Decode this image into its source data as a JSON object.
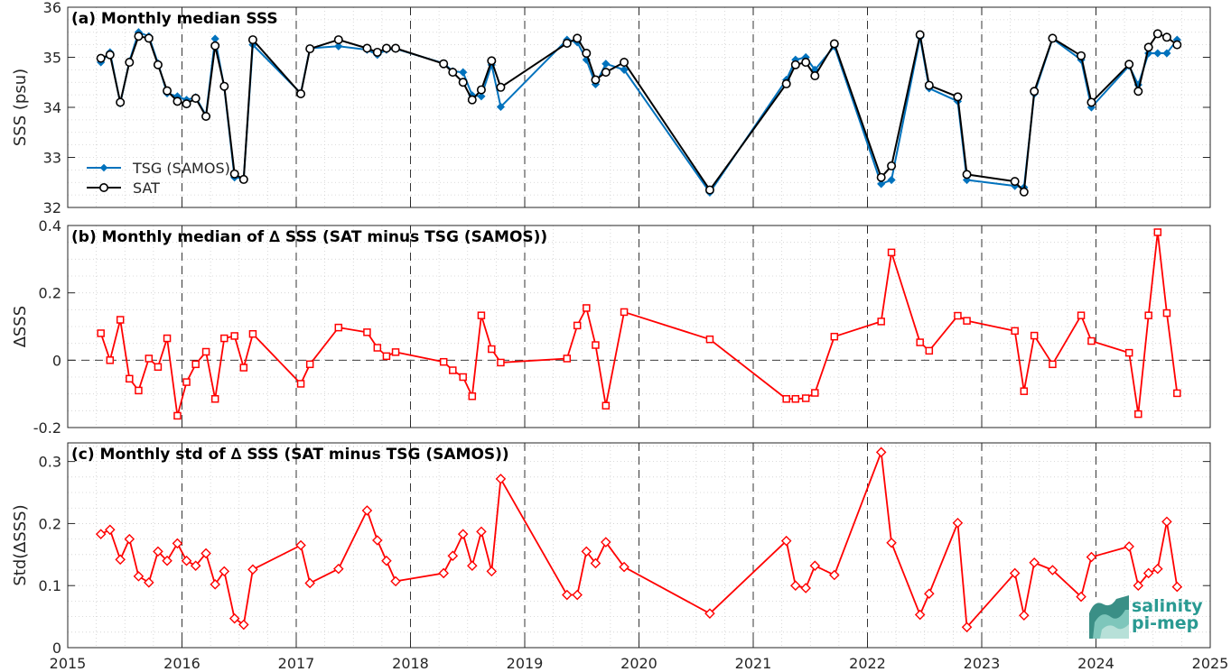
{
  "colors": {
    "tsg": "#0072bd",
    "sat": "#000000",
    "delta": "#ff0000",
    "grid": "#cfcfcf",
    "logo": "#2a9a92"
  },
  "logo": {
    "line1": "salinity",
    "line2": "pi-mep"
  },
  "chart_data": [
    {
      "type": "line",
      "title": "(a) Monthly median SSS",
      "ylabel": "SSS (psu)",
      "xlim": [
        2015,
        2025
      ],
      "ylim": [
        32,
        36
      ],
      "yticks": [
        "32",
        "33",
        "34",
        "35",
        "36"
      ],
      "legend": "left",
      "grid": true,
      "series": [
        {
          "name": "TSG (SAMOS)",
          "marker": "diamond",
          "x": [
            2015.29,
            2015.37,
            2015.46,
            2015.54,
            2015.62,
            2015.71,
            2015.79,
            2015.87,
            2015.96,
            2016.04,
            2016.12,
            2016.21,
            2016.29,
            2016.37,
            2016.46,
            2016.54,
            2016.62,
            2017.04,
            2017.12,
            2017.37,
            2017.62,
            2017.71,
            2017.79,
            2017.87,
            2018.29,
            2018.37,
            2018.46,
            2018.54,
            2018.62,
            2018.71,
            2018.79,
            2019.37,
            2019.46,
            2019.54,
            2019.62,
            2019.71,
            2019.87,
            2020.62,
            2021.29,
            2021.37,
            2021.46,
            2021.54,
            2021.71,
            2022.12,
            2022.21,
            2022.46,
            2022.54,
            2022.79,
            2022.87,
            2023.29,
            2023.37,
            2023.46,
            2023.62,
            2023.87,
            2023.96,
            2024.29,
            2024.37,
            2024.46,
            2024.54,
            2024.62,
            2024.71
          ],
          "y": [
            34.9,
            35.1,
            34.08,
            34.92,
            35.5,
            35.42,
            34.88,
            34.28,
            34.22,
            34.15,
            34.2,
            33.84,
            35.37,
            34.4,
            32.6,
            32.58,
            35.25,
            34.28,
            35.18,
            35.22,
            35.15,
            35.05,
            35.15,
            35.17,
            34.88,
            34.72,
            34.7,
            34.24,
            34.22,
            34.85,
            34.01,
            35.35,
            35.3,
            34.95,
            34.46,
            34.87,
            34.75,
            32.3,
            34.55,
            34.95,
            35.0,
            34.75,
            35.22,
            32.47,
            32.55,
            35.4,
            34.38,
            34.12,
            32.55,
            32.43,
            32.4,
            34.27,
            35.37,
            34.95,
            34.0,
            34.83,
            34.45,
            35.08,
            35.08,
            35.08,
            35.35
          ]
        },
        {
          "name": "SAT",
          "marker": "circle",
          "x": [
            2015.29,
            2015.37,
            2015.46,
            2015.54,
            2015.62,
            2015.71,
            2015.79,
            2015.87,
            2015.96,
            2016.04,
            2016.12,
            2016.21,
            2016.29,
            2016.37,
            2016.46,
            2016.54,
            2016.62,
            2017.04,
            2017.12,
            2017.37,
            2017.62,
            2017.71,
            2017.79,
            2017.87,
            2018.29,
            2018.37,
            2018.46,
            2018.54,
            2018.62,
            2018.71,
            2018.79,
            2019.37,
            2019.46,
            2019.54,
            2019.62,
            2019.71,
            2019.87,
            2020.62,
            2021.29,
            2021.37,
            2021.46,
            2021.54,
            2021.71,
            2022.12,
            2022.21,
            2022.46,
            2022.54,
            2022.79,
            2022.87,
            2023.29,
            2023.37,
            2023.46,
            2023.62,
            2023.87,
            2023.96,
            2024.29,
            2024.37,
            2024.46,
            2024.54,
            2024.62,
            2024.71
          ],
          "y": [
            34.98,
            35.05,
            34.1,
            34.9,
            35.42,
            35.38,
            34.85,
            34.33,
            34.12,
            34.07,
            34.18,
            33.82,
            35.23,
            34.42,
            32.67,
            32.56,
            35.35,
            34.27,
            35.17,
            35.35,
            35.18,
            35.1,
            35.18,
            35.18,
            34.87,
            34.7,
            34.5,
            34.15,
            34.35,
            34.93,
            34.4,
            35.28,
            35.38,
            35.08,
            34.55,
            34.7,
            34.9,
            32.35,
            34.47,
            34.85,
            34.9,
            34.63,
            35.27,
            32.6,
            32.83,
            35.45,
            34.44,
            34.21,
            32.66,
            32.52,
            32.31,
            34.32,
            35.38,
            35.03,
            34.1,
            34.86,
            34.32,
            35.2,
            35.47,
            35.4,
            35.25
          ]
        }
      ]
    },
    {
      "type": "line",
      "title": "(b) Monthly median of ∆ SSS (SAT minus TSG (SAMOS))",
      "ylabel": "∆SSS",
      "xlim": [
        2015,
        2025
      ],
      "ylim": [
        -0.2,
        0.4
      ],
      "yticks": [
        "-0.2",
        "0",
        "0.2",
        "0.4"
      ],
      "zero_line": true,
      "grid": true,
      "series": [
        {
          "marker": "square",
          "x": [
            2015.29,
            2015.37,
            2015.46,
            2015.54,
            2015.62,
            2015.71,
            2015.79,
            2015.87,
            2015.96,
            2016.04,
            2016.12,
            2016.21,
            2016.29,
            2016.37,
            2016.46,
            2016.54,
            2016.62,
            2017.04,
            2017.12,
            2017.37,
            2017.62,
            2017.71,
            2017.79,
            2017.87,
            2018.29,
            2018.37,
            2018.46,
            2018.54,
            2018.62,
            2018.71,
            2018.79,
            2019.37,
            2019.46,
            2019.54,
            2019.62,
            2019.71,
            2019.87,
            2020.62,
            2021.29,
            2021.37,
            2021.46,
            2021.54,
            2021.71,
            2022.12,
            2022.21,
            2022.46,
            2022.54,
            2022.79,
            2022.87,
            2023.29,
            2023.37,
            2023.46,
            2023.62,
            2023.87,
            2023.96,
            2024.29,
            2024.37,
            2024.46,
            2024.54,
            2024.62,
            2024.71
          ],
          "y": [
            0.08,
            0.0,
            0.12,
            -0.055,
            -0.09,
            0.005,
            -0.02,
            0.065,
            -0.165,
            -0.065,
            -0.012,
            0.025,
            -0.115,
            0.065,
            0.072,
            -0.022,
            0.078,
            -0.07,
            -0.012,
            0.097,
            0.083,
            0.037,
            0.012,
            0.024,
            -0.005,
            -0.03,
            -0.05,
            -0.107,
            0.133,
            0.033,
            -0.007,
            0.005,
            0.103,
            0.155,
            0.045,
            -0.135,
            0.143,
            0.062,
            -0.115,
            -0.115,
            -0.113,
            -0.097,
            0.07,
            0.115,
            0.32,
            0.053,
            0.028,
            0.132,
            0.117,
            0.087,
            -0.092,
            0.073,
            -0.012,
            0.133,
            0.057,
            0.022,
            -0.16,
            0.133,
            0.38,
            0.14,
            -0.098
          ]
        }
      ]
    },
    {
      "type": "line",
      "title": "(c) Monthly std of ∆ SSS (SAT minus TSG (SAMOS))",
      "ylabel": "Std(∆SSS)",
      "xlim": [
        2015,
        2025
      ],
      "ylim": [
        0,
        0.33
      ],
      "yticks": [
        "0",
        "0.1",
        "0.2",
        "0.3"
      ],
      "xticks": [
        "2015",
        "2016",
        "2017",
        "2018",
        "2019",
        "2020",
        "2021",
        "2022",
        "2023",
        "2024",
        "2025"
      ],
      "grid": true,
      "series": [
        {
          "marker": "diamond",
          "x": [
            2015.29,
            2015.37,
            2015.46,
            2015.54,
            2015.62,
            2015.71,
            2015.79,
            2015.87,
            2015.96,
            2016.04,
            2016.12,
            2016.21,
            2016.29,
            2016.37,
            2016.46,
            2016.54,
            2016.62,
            2017.04,
            2017.12,
            2017.37,
            2017.62,
            2017.71,
            2017.79,
            2017.87,
            2018.29,
            2018.37,
            2018.46,
            2018.54,
            2018.62,
            2018.71,
            2018.79,
            2019.37,
            2019.46,
            2019.54,
            2019.62,
            2019.71,
            2019.87,
            2020.62,
            2021.29,
            2021.37,
            2021.46,
            2021.54,
            2021.71,
            2022.12,
            2022.21,
            2022.46,
            2022.54,
            2022.79,
            2022.87,
            2023.29,
            2023.37,
            2023.46,
            2023.62,
            2023.87,
            2023.96,
            2024.29,
            2024.37,
            2024.46,
            2024.54,
            2024.62,
            2024.71
          ],
          "y": [
            0.183,
            0.19,
            0.142,
            0.175,
            0.115,
            0.105,
            0.155,
            0.14,
            0.168,
            0.14,
            0.132,
            0.152,
            0.102,
            0.123,
            0.047,
            0.037,
            0.126,
            0.165,
            0.104,
            0.127,
            0.221,
            0.173,
            0.14,
            0.107,
            0.12,
            0.148,
            0.183,
            0.132,
            0.187,
            0.123,
            0.272,
            0.085,
            0.085,
            0.155,
            0.136,
            0.17,
            0.13,
            0.055,
            0.172,
            0.1,
            0.096,
            0.132,
            0.117,
            0.315,
            0.169,
            0.053,
            0.087,
            0.201,
            0.033,
            0.12,
            0.052,
            0.137,
            0.125,
            0.082,
            0.146,
            0.163,
            0.1,
            0.12,
            0.127,
            0.203,
            0.098
          ]
        }
      ]
    }
  ]
}
